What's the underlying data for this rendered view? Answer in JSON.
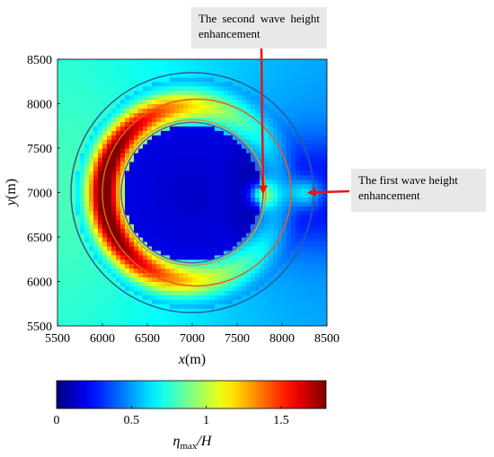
{
  "chart_data": {
    "type": "heatmap",
    "title": "",
    "xlabel_italic": "x",
    "xlabel_unit": "(m)",
    "ylabel_italic": "y",
    "ylabel_unit": "(m)",
    "xlim": [
      5500,
      8500
    ],
    "ylim": [
      5500,
      8500
    ],
    "xticks": [
      "5500",
      "6000",
      "6500",
      "7000",
      "7500",
      "8000",
      "8500"
    ],
    "yticks": [
      "5500",
      "6000",
      "6500",
      "7000",
      "7500",
      "8000",
      "8500"
    ],
    "colorbar": {
      "range": [
        0,
        1.8
      ],
      "ticks": [
        "0",
        "0.5",
        "1",
        "1.5"
      ],
      "tick_values": [
        0,
        0.5,
        1,
        1.5
      ],
      "label_main": "η",
      "label_sub": "max",
      "label_tail": "/H"
    },
    "circles": [
      {
        "cx": 7000,
        "cy": 7000,
        "r": 820,
        "color": "#c9a227"
      },
      {
        "cx": 7000,
        "cy": 7000,
        "r": 790,
        "color": "#7a4fa0"
      },
      {
        "cx": 7050,
        "cy": 7000,
        "r": 1050,
        "color": "#e0621c"
      },
      {
        "cx": 7000,
        "cy": 7000,
        "r": 1350,
        "color": "#2a5d9c"
      }
    ],
    "field": {
      "background": 0.55,
      "enhancements": [
        {
          "label": "left crescent peak",
          "x": 5900,
          "y": 7000,
          "value": 1.65
        },
        {
          "label": "second wave height enhancement",
          "x": 7780,
          "y": 6980,
          "value": 0.9
        },
        {
          "label": "first wave height enhancement",
          "x": 8260,
          "y": 7000,
          "value": 0.75
        }
      ]
    }
  },
  "annotations": {
    "second": {
      "text": "The second wave height enhancement",
      "target": [
        7780,
        6980
      ]
    },
    "first": {
      "text": "The first wave height enhancement",
      "target": [
        8260,
        7000
      ]
    }
  },
  "colors": {
    "arrow": "#e8141b"
  }
}
